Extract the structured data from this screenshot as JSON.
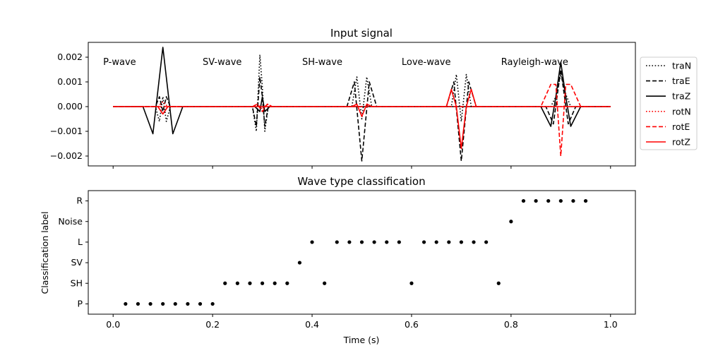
{
  "chart_data": [
    {
      "type": "line",
      "title": "Input signal",
      "xlabel": "",
      "ylabel": "",
      "xlim": [
        -0.05,
        1.05
      ],
      "ylim": [
        -0.0024,
        0.0026
      ],
      "yticks": [
        -0.002,
        -0.001,
        0.0,
        0.001,
        0.002
      ],
      "ytick_labels": [
        "−0.002",
        "−0.001",
        "0.000",
        "0.001",
        "0.002"
      ],
      "xticks": [
        0.0,
        0.2,
        0.4,
        0.6,
        0.8,
        1.0
      ],
      "x_ticklabels_visible": false,
      "grid": false,
      "legend_position": "outside right",
      "annotations": [
        {
          "text": "P-wave",
          "x": -0.02,
          "y": 0.0018
        },
        {
          "text": "SV-wave",
          "x": 0.18,
          "y": 0.0018
        },
        {
          "text": "SH-wave",
          "x": 0.38,
          "y": 0.0018
        },
        {
          "text": "Love-wave",
          "x": 0.58,
          "y": 0.0018
        },
        {
          "text": "Rayleigh-wave",
          "x": 0.78,
          "y": 0.0018
        }
      ],
      "series": [
        {
          "name": "traN",
          "color": "#000000",
          "style": "dotted",
          "x": [
            0.0,
            0.085,
            0.093,
            0.1,
            0.107,
            0.115,
            0.2,
            0.28,
            0.288,
            0.295,
            0.3,
            0.305,
            0.312,
            0.32,
            0.4,
            0.48,
            0.49,
            0.5,
            0.51,
            0.52,
            0.6,
            0.68,
            0.69,
            0.7,
            0.71,
            0.72,
            0.8,
            0.88,
            0.89,
            0.9,
            0.91,
            0.92,
            1.0
          ],
          "y": [
            0.0,
            0.0,
            -0.0006,
            0.0004,
            -0.0006,
            0.0,
            0.0,
            0.0,
            -0.001,
            0.0021,
            0.0008,
            -0.001,
            0.0,
            0.0,
            0.0,
            0.0,
            0.0012,
            -0.0005,
            0.0012,
            0.0,
            0.0,
            0.0,
            0.0013,
            -0.0006,
            0.0013,
            0.0,
            0.0,
            0.0,
            0.0004,
            0.0013,
            0.0005,
            0.0,
            0.0
          ]
        },
        {
          "name": "traE",
          "color": "#000000",
          "style": "dashed",
          "x": [
            0.0,
            0.085,
            0.093,
            0.1,
            0.107,
            0.115,
            0.2,
            0.28,
            0.288,
            0.295,
            0.3,
            0.305,
            0.312,
            0.32,
            0.4,
            0.47,
            0.485,
            0.5,
            0.515,
            0.53,
            0.6,
            0.67,
            0.685,
            0.7,
            0.715,
            0.73,
            0.8,
            0.87,
            0.885,
            0.9,
            0.915,
            0.93,
            1.0
          ],
          "y": [
            0.0,
            0.0,
            0.0004,
            -0.0002,
            0.0004,
            0.0,
            0.0,
            0.0,
            -0.0008,
            0.0012,
            0.0004,
            -0.0008,
            0.0,
            0.0,
            0.0,
            0.0,
            0.001,
            -0.0022,
            0.001,
            0.0,
            0.0,
            0.0,
            0.001,
            -0.0022,
            0.001,
            0.0,
            0.0,
            0.0,
            -0.0007,
            0.0015,
            -0.0007,
            0.0,
            0.0
          ]
        },
        {
          "name": "traZ",
          "color": "#000000",
          "style": "solid",
          "x": [
            0.0,
            0.06,
            0.08,
            0.1,
            0.12,
            0.14,
            0.2,
            0.285,
            0.295,
            0.3,
            0.305,
            0.315,
            0.4,
            0.86,
            0.88,
            0.89,
            0.9,
            0.91,
            0.92,
            0.94,
            1.0
          ],
          "y": [
            0.0,
            0.0,
            -0.0011,
            0.0024,
            -0.0011,
            0.0,
            0.0,
            0.0,
            -0.0002,
            0.0004,
            -0.0002,
            0.0,
            0.0,
            0.0,
            -0.0008,
            0.0004,
            0.0018,
            0.0004,
            -0.0008,
            0.0,
            0.0
          ]
        },
        {
          "name": "rotN",
          "color": "#ff0000",
          "style": "dotted",
          "x": [
            0.0,
            0.09,
            0.1,
            0.11,
            0.2,
            0.28,
            0.29,
            0.3,
            0.31,
            0.32,
            1.0
          ],
          "y": [
            0.0,
            0.0,
            0.0002,
            0.0,
            0.0,
            0.0,
            0.0001,
            -0.0001,
            0.0001,
            0.0,
            0.0
          ]
        },
        {
          "name": "rotE",
          "color": "#ff0000",
          "style": "dashed",
          "x": [
            0.0,
            0.28,
            0.29,
            0.3,
            0.31,
            0.32,
            0.86,
            0.88,
            0.89,
            0.9,
            0.91,
            0.92,
            0.94,
            1.0
          ],
          "y": [
            0.0,
            0.0,
            0.0001,
            -0.0002,
            0.0001,
            0.0,
            0.0,
            0.0009,
            0.0009,
            -0.002,
            0.0009,
            0.0009,
            0.0,
            0.0
          ]
        },
        {
          "name": "rotZ",
          "color": "#ff0000",
          "style": "solid",
          "x": [
            0.0,
            0.09,
            0.1,
            0.11,
            0.2,
            0.48,
            0.49,
            0.5,
            0.51,
            0.52,
            0.6,
            0.67,
            0.68,
            0.69,
            0.7,
            0.71,
            0.72,
            0.73,
            1.0
          ],
          "y": [
            0.0,
            0.0,
            -0.0003,
            0.0,
            0.0,
            0.0,
            0.0001,
            -0.0004,
            0.0001,
            0.0,
            0.0,
            0.0,
            0.0007,
            0.0,
            -0.0017,
            0.0,
            0.0007,
            0.0,
            0.0
          ]
        }
      ]
    },
    {
      "type": "scatter",
      "title": "Wave type classification",
      "xlabel": "Time (s)",
      "ylabel": "Classification label",
      "xlim": [
        -0.05,
        1.05
      ],
      "categories_y": [
        "P",
        "SH",
        "SV",
        "L",
        "Noise",
        "R"
      ],
      "xticks": [
        0.0,
        0.2,
        0.4,
        0.6,
        0.8,
        1.0
      ],
      "xtick_labels": [
        "0.0",
        "0.2",
        "0.4",
        "0.6",
        "0.8",
        "1.0"
      ],
      "grid": false,
      "points": [
        {
          "x": 0.025,
          "y": "P"
        },
        {
          "x": 0.05,
          "y": "P"
        },
        {
          "x": 0.075,
          "y": "P"
        },
        {
          "x": 0.1,
          "y": "P"
        },
        {
          "x": 0.125,
          "y": "P"
        },
        {
          "x": 0.15,
          "y": "P"
        },
        {
          "x": 0.175,
          "y": "P"
        },
        {
          "x": 0.2,
          "y": "P"
        },
        {
          "x": 0.225,
          "y": "SH"
        },
        {
          "x": 0.25,
          "y": "SH"
        },
        {
          "x": 0.275,
          "y": "SH"
        },
        {
          "x": 0.3,
          "y": "SH"
        },
        {
          "x": 0.325,
          "y": "SH"
        },
        {
          "x": 0.35,
          "y": "SH"
        },
        {
          "x": 0.375,
          "y": "SV"
        },
        {
          "x": 0.4,
          "y": "L"
        },
        {
          "x": 0.425,
          "y": "SH"
        },
        {
          "x": 0.45,
          "y": "L"
        },
        {
          "x": 0.475,
          "y": "L"
        },
        {
          "x": 0.5,
          "y": "L"
        },
        {
          "x": 0.525,
          "y": "L"
        },
        {
          "x": 0.55,
          "y": "L"
        },
        {
          "x": 0.575,
          "y": "L"
        },
        {
          "x": 0.6,
          "y": "SH"
        },
        {
          "x": 0.625,
          "y": "L"
        },
        {
          "x": 0.65,
          "y": "L"
        },
        {
          "x": 0.675,
          "y": "L"
        },
        {
          "x": 0.7,
          "y": "L"
        },
        {
          "x": 0.725,
          "y": "L"
        },
        {
          "x": 0.75,
          "y": "L"
        },
        {
          "x": 0.775,
          "y": "SH"
        },
        {
          "x": 0.8,
          "y": "Noise"
        },
        {
          "x": 0.825,
          "y": "R"
        },
        {
          "x": 0.85,
          "y": "R"
        },
        {
          "x": 0.875,
          "y": "R"
        },
        {
          "x": 0.9,
          "y": "R"
        },
        {
          "x": 0.925,
          "y": "R"
        },
        {
          "x": 0.95,
          "y": "R"
        }
      ]
    }
  ]
}
